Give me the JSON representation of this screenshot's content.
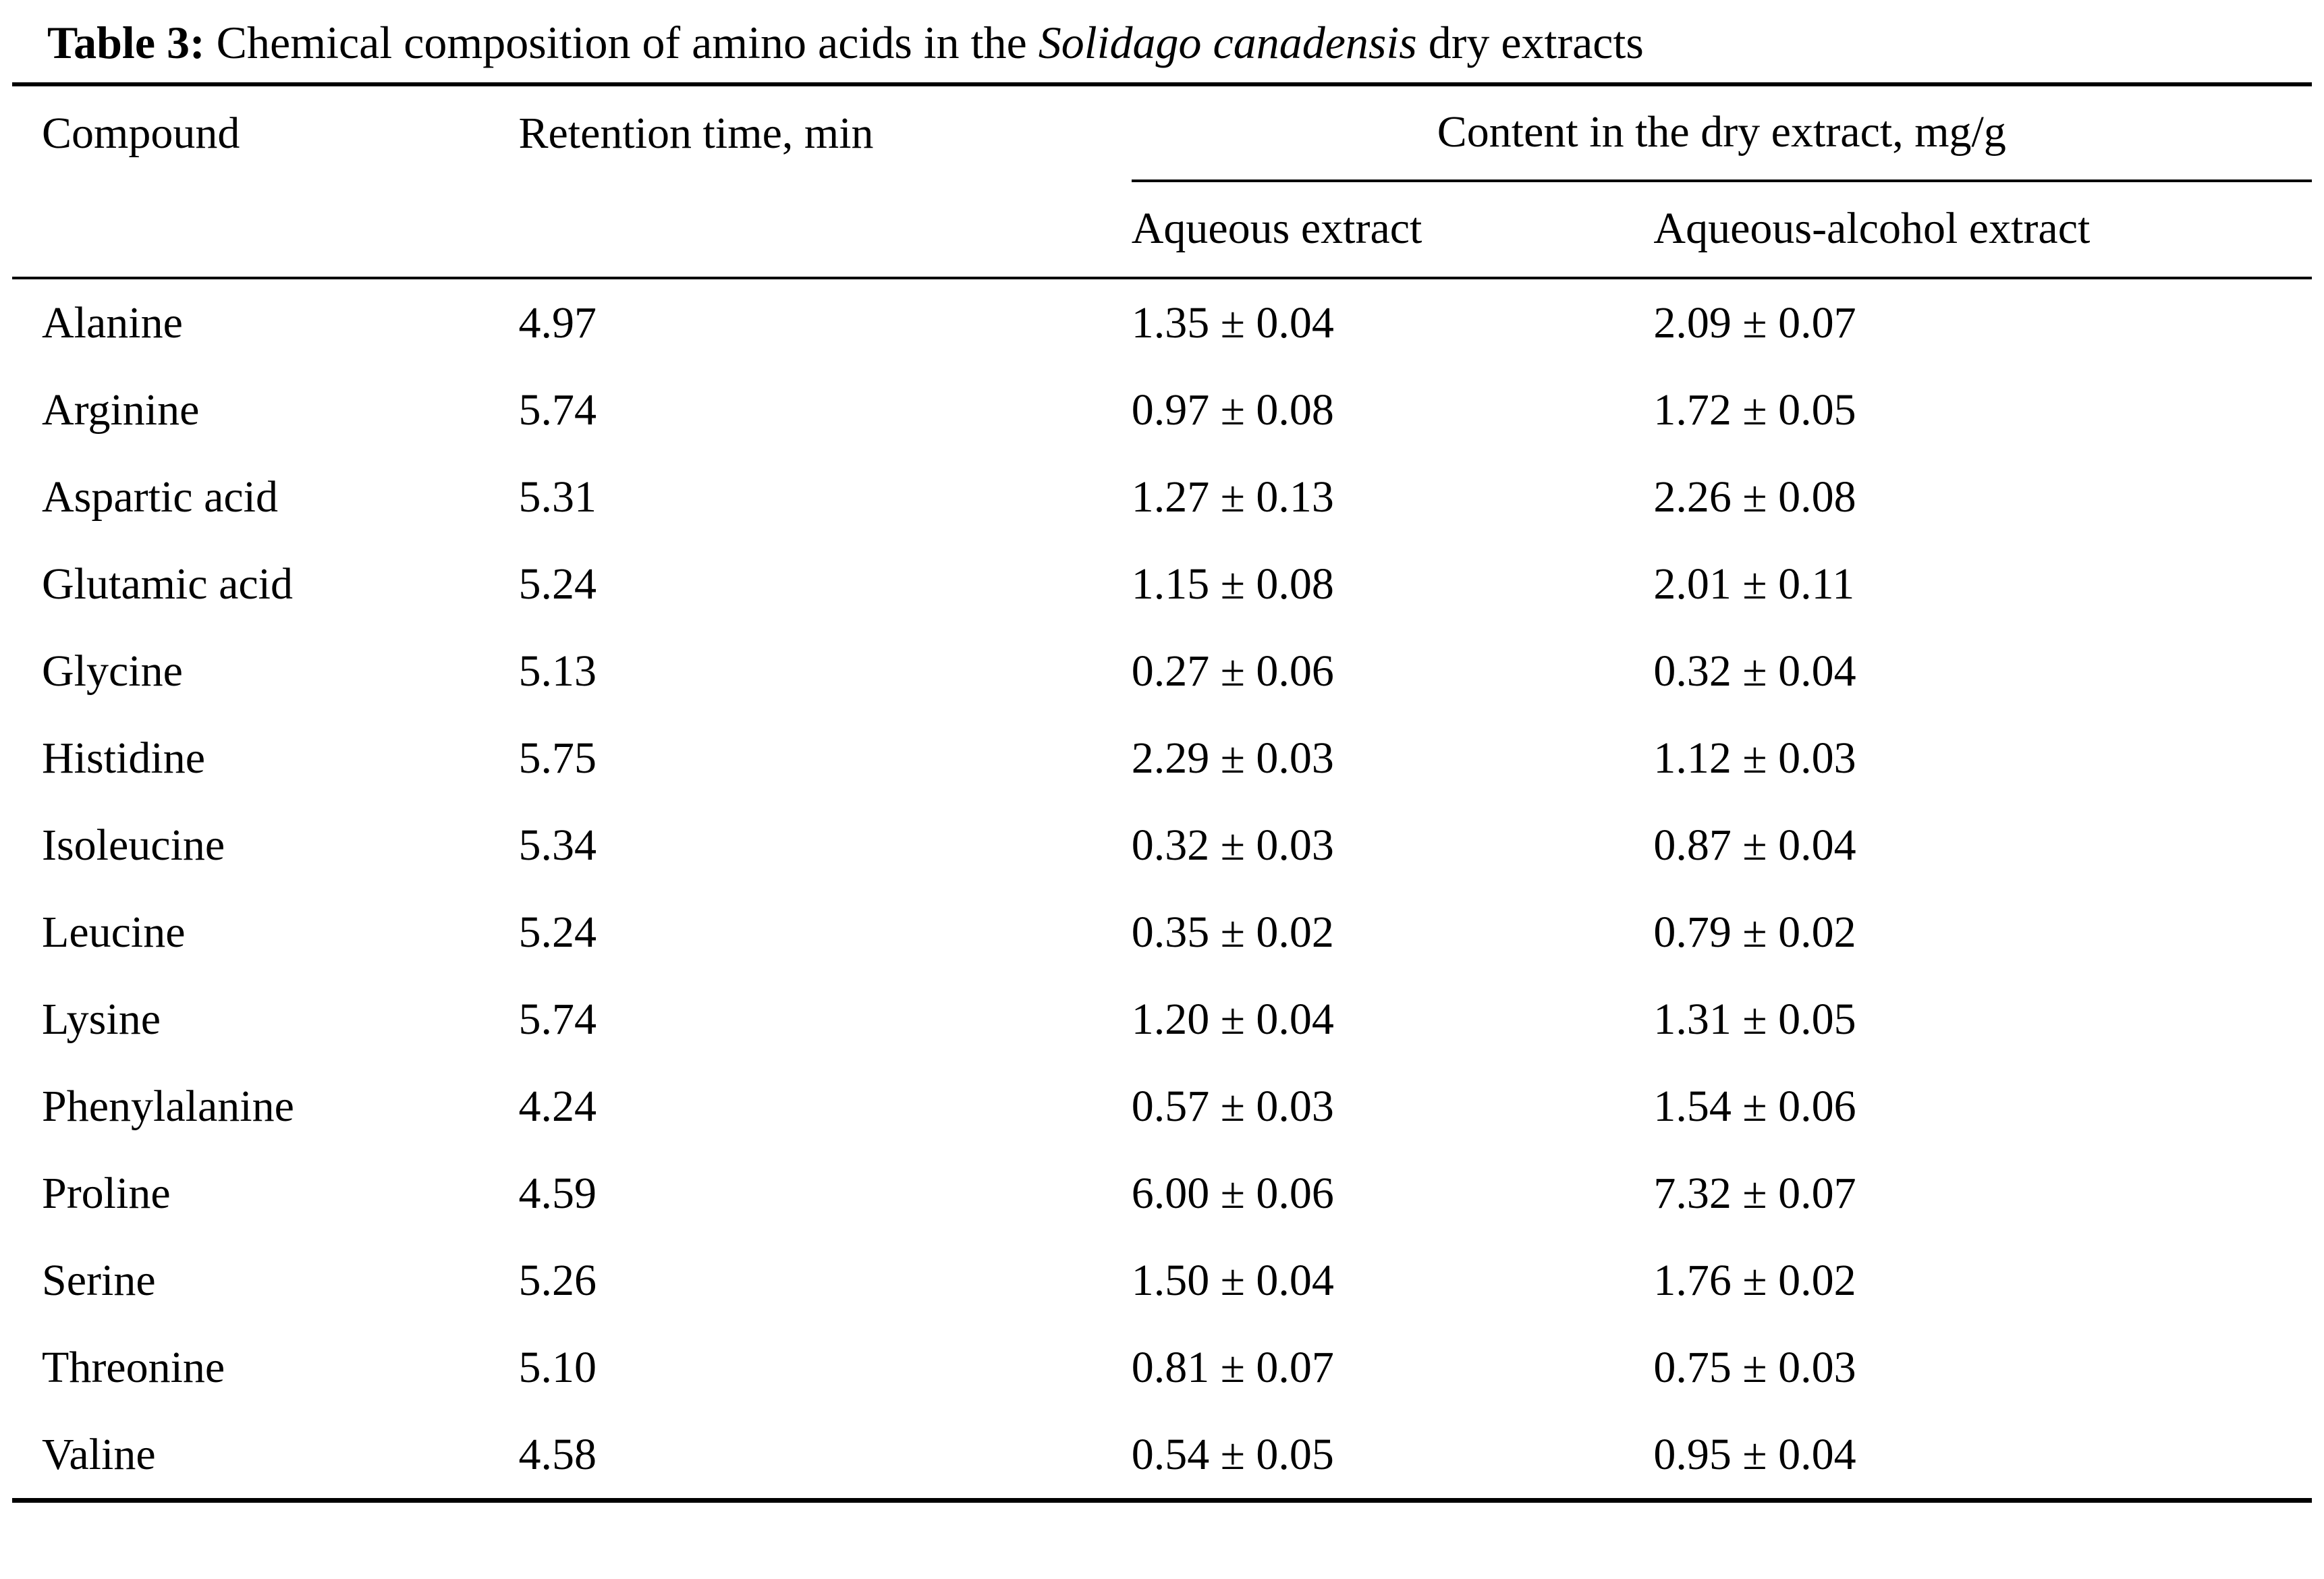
{
  "caption": {
    "label": "Table 3:",
    "pre": " Chemical composition of amino acids in the ",
    "species": "Solidago canadensis",
    "post": " dry extracts"
  },
  "headers": {
    "compound": "Compound",
    "retention": "Retention time, min",
    "content_group": "Content in the dry extract, mg/g",
    "aqueous": "Aqueous extract",
    "alcohol": "Aqueous-alcohol extract"
  },
  "table": {
    "rows": [
      {
        "compound": "Alanine",
        "retention": "4.97",
        "aqueous": "1.35 ± 0.04",
        "alcohol": "2.09 ± 0.07"
      },
      {
        "compound": "Arginine",
        "retention": "5.74",
        "aqueous": "0.97 ± 0.08",
        "alcohol": "1.72 ± 0.05"
      },
      {
        "compound": "Aspartic acid",
        "retention": "5.31",
        "aqueous": "1.27 ± 0.13",
        "alcohol": "2.26 ± 0.08"
      },
      {
        "compound": "Glutamic acid",
        "retention": "5.24",
        "aqueous": "1.15 ± 0.08",
        "alcohol": "2.01 ± 0.11"
      },
      {
        "compound": "Glycine",
        "retention": "5.13",
        "aqueous": "0.27 ± 0.06",
        "alcohol": "0.32 ± 0.04"
      },
      {
        "compound": "Histidine",
        "retention": "5.75",
        "aqueous": "2.29 ± 0.03",
        "alcohol": "1.12 ± 0.03"
      },
      {
        "compound": "Isoleucine",
        "retention": "5.34",
        "aqueous": "0.32 ± 0.03",
        "alcohol": "0.87 ± 0.04"
      },
      {
        "compound": "Leucine",
        "retention": "5.24",
        "aqueous": "0.35 ± 0.02",
        "alcohol": "0.79 ± 0.02"
      },
      {
        "compound": "Lysine",
        "retention": "5.74",
        "aqueous": "1.20 ± 0.04",
        "alcohol": "1.31 ± 0.05"
      },
      {
        "compound": "Phenylalanine",
        "retention": "4.24",
        "aqueous": "0.57 ± 0.03",
        "alcohol": "1.54 ± 0.06"
      },
      {
        "compound": "Proline",
        "retention": "4.59",
        "aqueous": "6.00 ± 0.06",
        "alcohol": "7.32 ± 0.07"
      },
      {
        "compound": "Serine",
        "retention": "5.26",
        "aqueous": "1.50 ± 0.04",
        "alcohol": "1.76 ± 0.02"
      },
      {
        "compound": "Threonine",
        "retention": "5.10",
        "aqueous": "0.81 ± 0.07",
        "alcohol": "0.75 ± 0.03"
      },
      {
        "compound": "Valine",
        "retention": "4.58",
        "aqueous": "0.54 ± 0.05",
        "alcohol": "0.95 ± 0.04"
      }
    ]
  }
}
